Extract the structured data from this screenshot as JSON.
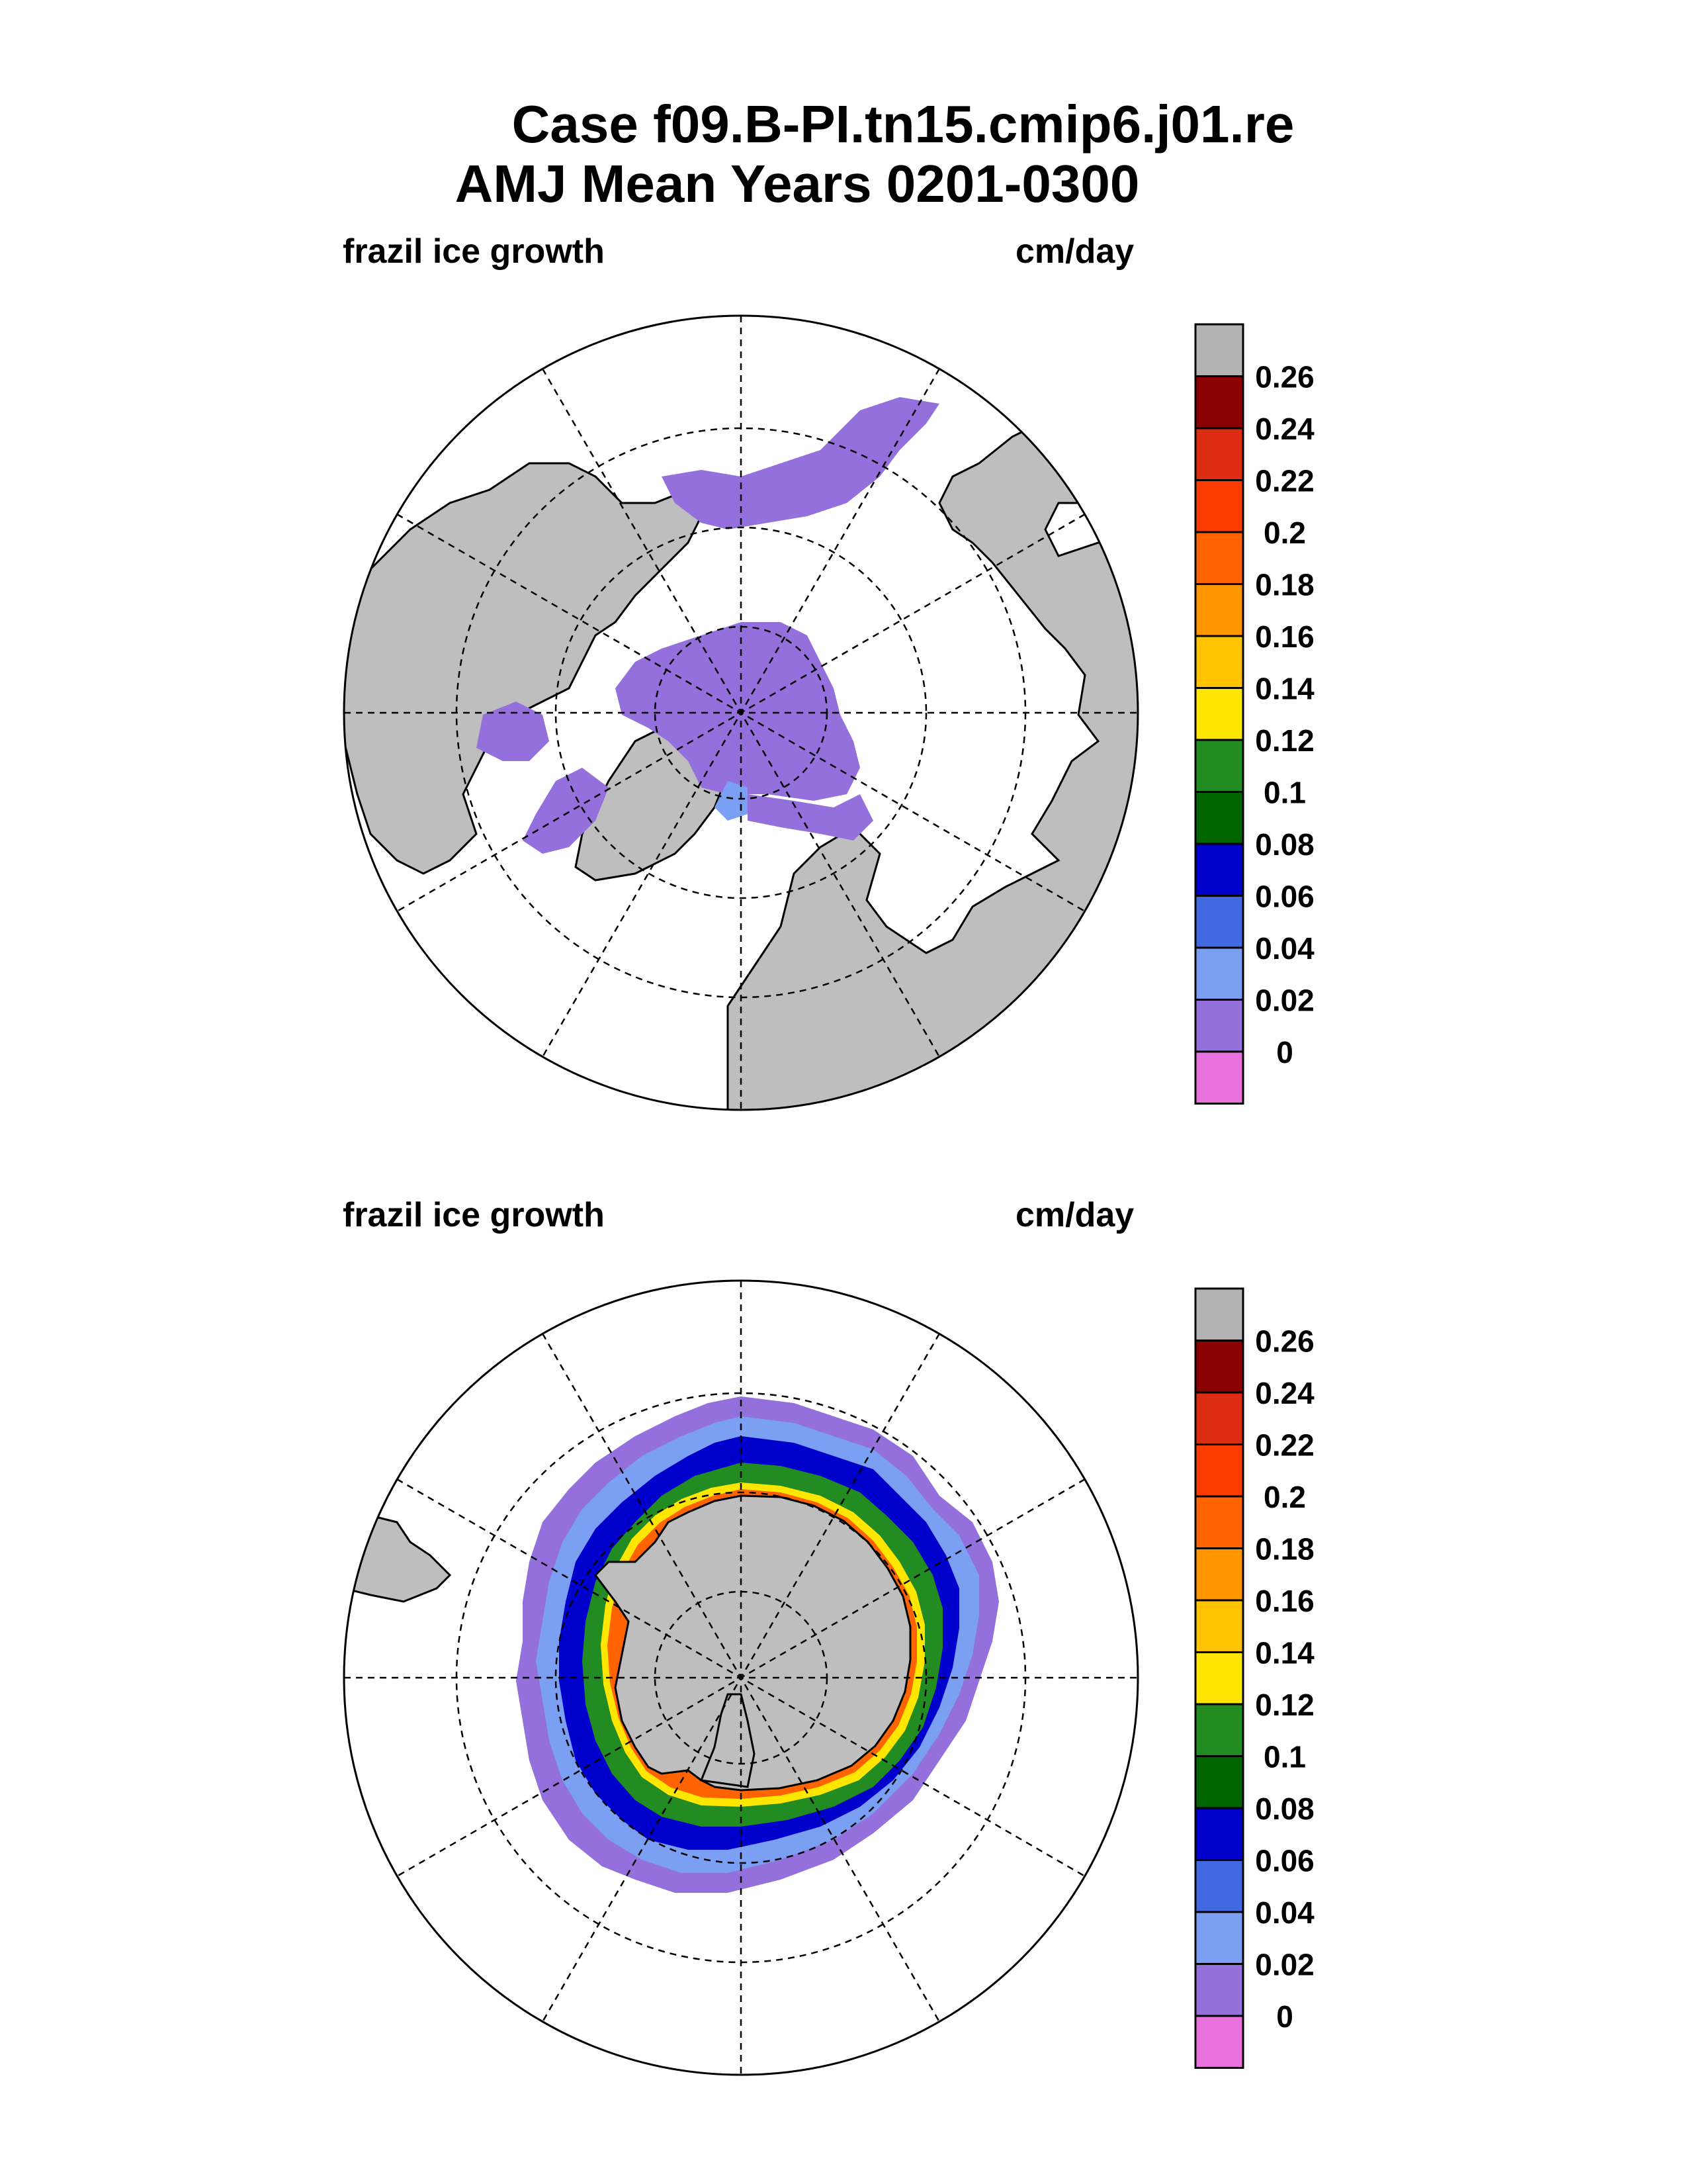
{
  "title": {
    "line1": "Case f09.B-PI.tn15.cmip6.j01.re",
    "line2": "AMJ Mean   Years 0201-0300"
  },
  "panels": [
    {
      "hemisphere": "north",
      "left_label": "frazil ice growth",
      "right_label": "cm/day"
    },
    {
      "hemisphere": "south",
      "left_label": "frazil ice growth",
      "right_label": "cm/day"
    }
  ],
  "colorbar": {
    "labels": [
      "0.26",
      "0.24",
      "0.22",
      "0.2",
      "0.18",
      "0.16",
      "0.14",
      "0.12",
      "0.1",
      "0.08",
      "0.06",
      "0.04",
      "0.02",
      "0"
    ],
    "colors": [
      "#b4b4b4",
      "#8b0000",
      "#dc2d14",
      "#ff3c00",
      "#ff6400",
      "#ff9600",
      "#ffc300",
      "#ffe600",
      "#228b22",
      "#006400",
      "#0000cd",
      "#4169e1",
      "#7b9ff2",
      "#9370db",
      "#e670dc"
    ]
  },
  "map_colors": {
    "land": "#bebebe",
    "ocean": "#ffffff"
  }
}
